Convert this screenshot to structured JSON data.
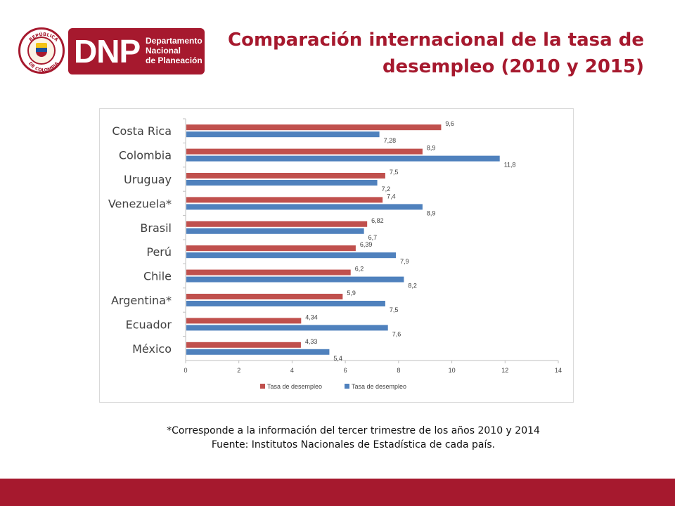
{
  "logo": {
    "seal_top": "REPÚBLICA",
    "seal_bottom": "DE COLOMBIA",
    "acronym": "DNP",
    "line1": "Departamento",
    "line2": "Nacional",
    "line3": "de Planeación"
  },
  "title_line1": "Comparación internacional de la tasa de",
  "title_line2": "desempleo (2010 y 2015)",
  "chart_data": {
    "type": "bar",
    "orientation": "horizontal",
    "categories": [
      "Costa Rica",
      "Colombia",
      "Uruguay",
      "Venezuela*",
      "Brasil",
      "Perú",
      "Chile",
      "Argentina*",
      "Ecuador",
      "México"
    ],
    "series": [
      {
        "name": "Tasa de desempleo",
        "color": "#c0504d",
        "values": [
          9.6,
          8.9,
          7.5,
          7.4,
          6.82,
          6.39,
          6.2,
          5.9,
          4.34,
          4.33
        ],
        "labels": [
          "9,6",
          "8,9",
          "7,5",
          "7,4",
          "6,82",
          "6,39",
          "6,2",
          "5,9",
          "4,34",
          "4,33"
        ]
      },
      {
        "name": "Tasa de desempleo",
        "color": "#4f81bd",
        "values": [
          7.28,
          11.8,
          7.2,
          8.9,
          6.7,
          7.9,
          8.2,
          7.5,
          7.6,
          5.4
        ],
        "labels": [
          "7,28",
          "11,8",
          "7,2",
          "8,9",
          "6,7",
          "7,9",
          "8,2",
          "7,5",
          "7,6",
          "5,4"
        ]
      }
    ],
    "xlim": [
      0,
      14
    ],
    "xticks": [
      0,
      2,
      4,
      6,
      8,
      10,
      12,
      14
    ],
    "legend_position": "bottom",
    "grid": false
  },
  "note_line1": "*Corresponde a la información del tercer trimestre de los años 2010 y 2014",
  "note_line2": "Fuente: Institutos Nacionales de Estadística de cada país."
}
